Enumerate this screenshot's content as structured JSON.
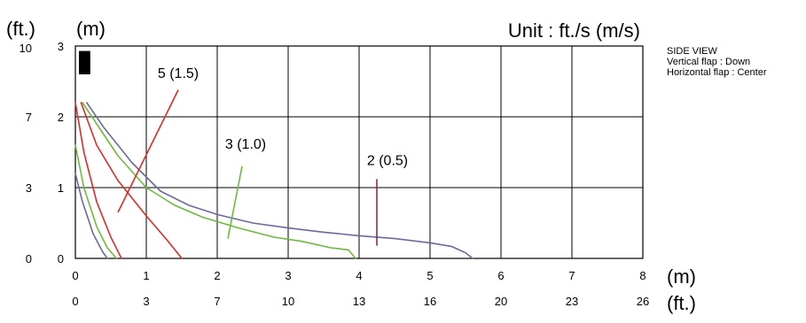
{
  "chart_data": {
    "type": "line",
    "unit_label": "Unit : ft./s (m/s)",
    "top_left_unit_ft": "(ft.)",
    "top_left_unit_m": "(m)",
    "x_unit_m": "(m)",
    "x_unit_ft": "(ft.)",
    "view_label": "SIDE VIEW",
    "vertical_flap": "Vertical flap : Down",
    "horizontal_flap": "Horizontal flap : Center",
    "xlim_m": [
      0,
      8
    ],
    "ylim_m": [
      0,
      3
    ],
    "x_ticks_m": [
      "0",
      "1",
      "2",
      "3",
      "4",
      "5",
      "6",
      "7",
      "8"
    ],
    "x_ticks_ft": [
      "0",
      "3",
      "7",
      "10",
      "13",
      "16",
      "20",
      "23",
      "26"
    ],
    "y_ticks_m": [
      "0",
      "1",
      "2",
      "3"
    ],
    "y_ticks_ft": [
      "0",
      "3",
      "7",
      "10"
    ],
    "grid": true,
    "unit_position": {
      "x": 0.05,
      "y": 2.6,
      "width": 0.16,
      "height": 0.33
    },
    "series": [
      {
        "name": "purple_outer",
        "color": "#6b6a9e",
        "points": [
          [
            0.16,
            2.2
          ],
          [
            0.4,
            1.85
          ],
          [
            0.8,
            1.35
          ],
          [
            1.2,
            0.95
          ],
          [
            1.6,
            0.75
          ],
          [
            2.0,
            0.62
          ],
          [
            2.5,
            0.5
          ],
          [
            3.0,
            0.43
          ],
          [
            3.5,
            0.37
          ],
          [
            4.0,
            0.32
          ],
          [
            4.5,
            0.28
          ],
          [
            5.0,
            0.22
          ],
          [
            5.3,
            0.17
          ],
          [
            5.5,
            0.08
          ],
          [
            5.6,
            0.0
          ]
        ]
      },
      {
        "name": "green_outer",
        "color": "#6cbb3c",
        "points": [
          [
            0.1,
            2.2
          ],
          [
            0.3,
            1.9
          ],
          [
            0.6,
            1.45
          ],
          [
            1.0,
            1.0
          ],
          [
            1.4,
            0.75
          ],
          [
            1.8,
            0.58
          ],
          [
            2.3,
            0.43
          ],
          [
            2.8,
            0.3
          ],
          [
            3.2,
            0.24
          ],
          [
            3.6,
            0.15
          ],
          [
            3.85,
            0.12
          ],
          [
            3.95,
            0.0
          ]
        ]
      },
      {
        "name": "red_outer",
        "color": "#e02b25",
        "points": [
          [
            0.08,
            2.2
          ],
          [
            0.3,
            1.6
          ],
          [
            0.6,
            1.1
          ],
          [
            1.0,
            0.6
          ],
          [
            1.3,
            0.25
          ],
          [
            1.5,
            0.0
          ]
        ]
      },
      {
        "name": "red_inner",
        "color": "#e02b25",
        "points": [
          [
            0.0,
            2.2
          ],
          [
            0.12,
            1.5
          ],
          [
            0.3,
            0.8
          ],
          [
            0.5,
            0.3
          ],
          [
            0.65,
            0.0
          ]
        ]
      },
      {
        "name": "green_inner",
        "color": "#6cbb3c",
        "points": [
          [
            0.0,
            1.6
          ],
          [
            0.12,
            1.0
          ],
          [
            0.3,
            0.45
          ],
          [
            0.45,
            0.15
          ],
          [
            0.58,
            0.0
          ]
        ]
      },
      {
        "name": "purple_inner",
        "color": "#6b6a9e",
        "points": [
          [
            0.0,
            1.2
          ],
          [
            0.1,
            0.8
          ],
          [
            0.25,
            0.35
          ],
          [
            0.38,
            0.1
          ],
          [
            0.45,
            0.0
          ]
        ]
      }
    ],
    "annotations": [
      {
        "label": "5 (1.5)",
        "label_x": 1.45,
        "label_y": 2.55,
        "color": "#e02b25",
        "line": [
          [
            1.45,
            2.38
          ],
          [
            0.6,
            0.65
          ]
        ]
      },
      {
        "label": "3 (1.0)",
        "label_x": 2.4,
        "label_y": 1.55,
        "color": "#6cbb3c",
        "line": [
          [
            2.35,
            1.3
          ],
          [
            2.15,
            0.28
          ]
        ]
      },
      {
        "label": "2 (0.5)",
        "label_x": 4.4,
        "label_y": 1.32,
        "color": "#8d2a5a",
        "line": [
          [
            4.25,
            1.12
          ],
          [
            4.25,
            0.18
          ]
        ]
      }
    ]
  }
}
